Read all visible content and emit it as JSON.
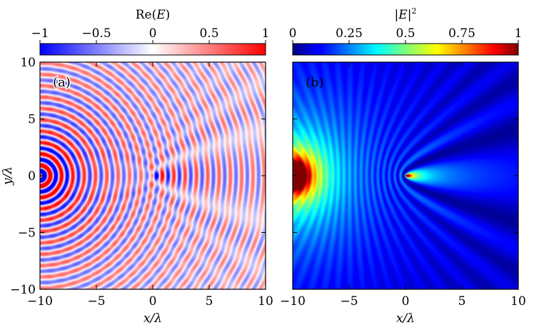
{
  "chart_data": [
    {
      "type": "heatmap",
      "panel_label": "(a)",
      "quantity": "Re(E)",
      "colorbar": {
        "title_prefix": "Re(",
        "title_var": "E",
        "title_suffix": ")",
        "colormap": "bwr",
        "range": [
          -1,
          1
        ],
        "ticks": [
          "−1",
          "−0.5",
          "0",
          "0.5",
          "1"
        ],
        "tick_values": [
          -1,
          -0.5,
          0,
          0.5,
          1
        ]
      },
      "xlabel": "x/λ",
      "ylabel": "y/λ",
      "xlim": [
        -10,
        10
      ],
      "ylim": [
        -10,
        10
      ],
      "xticks": [
        "−10",
        "−5",
        "0",
        "5",
        "10"
      ],
      "xtick_values": [
        -10,
        -5,
        0,
        5,
        10
      ],
      "yticks": [
        "10",
        "5",
        "0",
        "−5",
        "−10"
      ],
      "ytick_values": [
        10,
        5,
        0,
        -5,
        -10
      ],
      "source_position": [
        -10,
        0
      ],
      "scatterer_position": [
        0,
        0
      ]
    },
    {
      "type": "heatmap",
      "panel_label": "(b)",
      "quantity": "|E|^2",
      "colorbar": {
        "title_prefix": "|",
        "title_var": "E",
        "title_suffix": "|",
        "title_sup": "2",
        "colormap": "jet",
        "range": [
          0,
          1
        ],
        "ticks": [
          "0",
          "0.25",
          "0.5",
          "0.75",
          "1"
        ],
        "tick_values": [
          0,
          0.25,
          0.5,
          0.75,
          1
        ]
      },
      "xlabel": "x/λ",
      "xlim": [
        -10,
        10
      ],
      "ylim": [
        -10,
        10
      ],
      "xticks": [
        "−10",
        "−5",
        "0",
        "5",
        "10"
      ],
      "xtick_values": [
        -10,
        -5,
        0,
        5,
        10
      ],
      "source_position": [
        -10,
        0
      ],
      "scatterer_position": [
        0,
        0
      ]
    }
  ]
}
